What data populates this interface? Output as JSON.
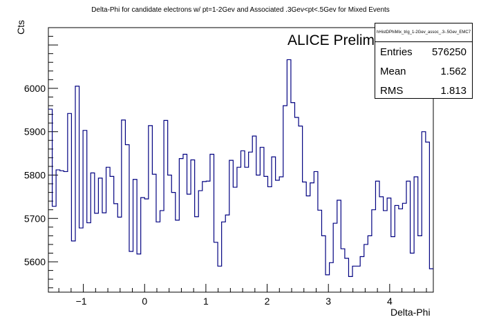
{
  "title": "Delta-Phi for candidate electrons w/ pt=1-2Gev and Associated .3Gev<pt<.5Gev for Mixed Events",
  "annotation": "ALICE Preliminary",
  "stats": {
    "header": "hHistDPhiMix_trig_1-2Gev_assoc_.3-.5Gev_EMC7",
    "rows": [
      {
        "label": "Entries",
        "value": "576250"
      },
      {
        "label": "Mean",
        "value": "1.562"
      },
      {
        "label": "RMS",
        "value": "1.813"
      }
    ]
  },
  "colors": {
    "line": "#000080",
    "axis": "#000000"
  },
  "chart_data": {
    "type": "histogram",
    "xlabel": "Delta-Phi",
    "ylabel": "Cts",
    "xlim": [
      -1.5708,
      4.7124
    ],
    "ylim": [
      5530,
      6140
    ],
    "x_ticks": [
      -1,
      0,
      1,
      2,
      3,
      4
    ],
    "y_ticks": [
      5600,
      5700,
      5800,
      5900,
      6000
    ],
    "bin_count": 100,
    "values": [
      5952,
      5728,
      5812,
      5810,
      5808,
      5942,
      5648,
      6005,
      5678,
      5903,
      5690,
      5805,
      5712,
      5793,
      5713,
      5818,
      5797,
      5734,
      5703,
      5927,
      5870,
      5624,
      5790,
      5618,
      5748,
      5745,
      5914,
      5802,
      5692,
      5718,
      5926,
      5800,
      5760,
      5696,
      5838,
      5848,
      5756,
      5835,
      5704,
      5764,
      5785,
      5786,
      5848,
      5645,
      5590,
      5692,
      5708,
      5834,
      5772,
      5818,
      5856,
      5818,
      5853,
      5890,
      5800,
      5864,
      5797,
      5773,
      5842,
      5788,
      5796,
      5960,
      6066,
      5967,
      5933,
      5913,
      5784,
      5752,
      5782,
      5808,
      5719,
      5660,
      5570,
      5598,
      5689,
      5742,
      5630,
      5608,
      5566,
      5590,
      5590,
      5612,
      5640,
      5660,
      5720,
      5786,
      5750,
      5718,
      5747,
      5658,
      5730,
      5722,
      5735,
      5786,
      5620,
      5796,
      5660,
      5900,
      5876,
      5584
    ]
  }
}
